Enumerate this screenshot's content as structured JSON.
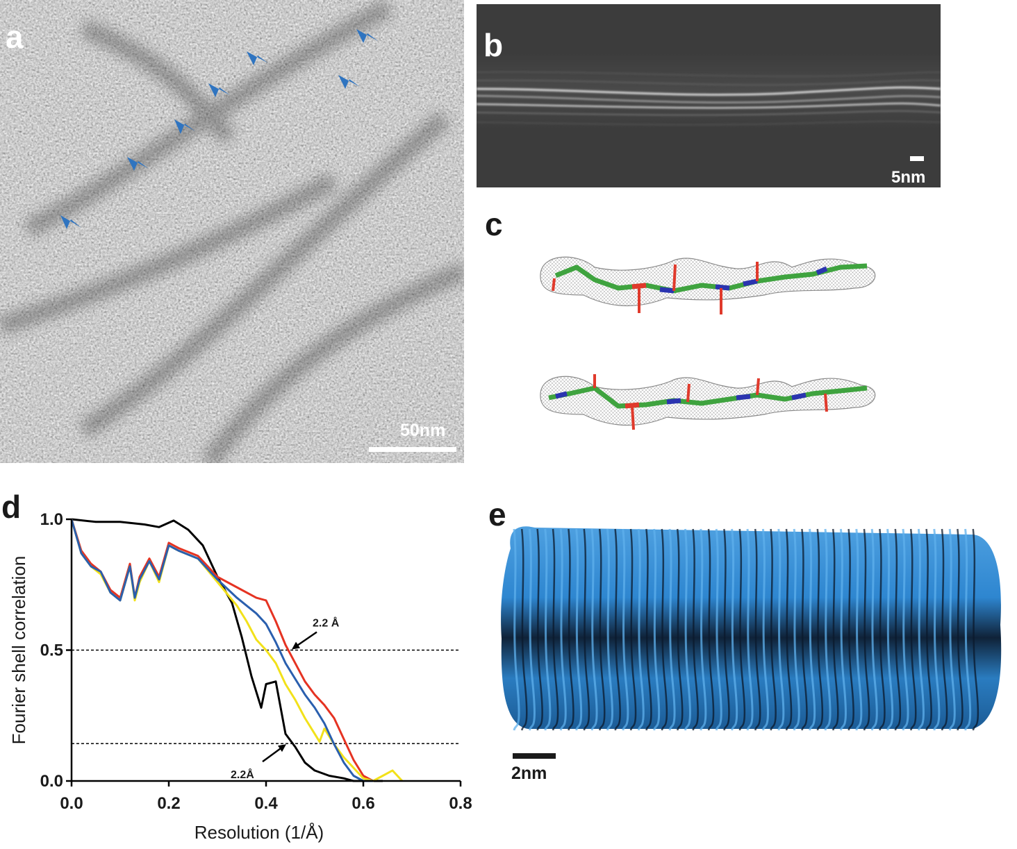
{
  "panels": {
    "a": {
      "letter": "a",
      "scale_label": "50nm"
    },
    "b": {
      "letter": "b",
      "scale_label": "5nm"
    },
    "c": {
      "letter": "c"
    },
    "d": {
      "letter": "d"
    },
    "e": {
      "letter": "e",
      "scale_label": "2nm"
    }
  },
  "colors": {
    "arrowhead": "#2f74c0",
    "micrograph": "#a9a9a9",
    "projection_bg": "#3c3c3c",
    "density_blue": "#2e86d0",
    "carbon": "#3fa33f",
    "nitrogen": "#2b34b0",
    "oxygen": "#e03a2c"
  },
  "chart_data": {
    "type": "line",
    "xlabel": "Resolution (1/Å)",
    "ylabel": "Fourier shell correlation",
    "xlim": [
      0,
      0.8
    ],
    "ylim": [
      0,
      1.0
    ],
    "xticks": [
      "0.0",
      "0.2",
      "0.4",
      "0.6",
      "0.8"
    ],
    "yticks": [
      "0.0",
      "0.5",
      "1.0"
    ],
    "thresholds": [
      0.5,
      0.143
    ],
    "annotations": [
      {
        "text": "2.2 Å",
        "x": 0.45,
        "y": 0.5
      },
      {
        "text": "2.2Å",
        "x": 0.45,
        "y": 0.143
      }
    ],
    "series": [
      {
        "color": "#000000",
        "x": [
          0.0,
          0.05,
          0.1,
          0.15,
          0.18,
          0.21,
          0.24,
          0.27,
          0.3,
          0.33,
          0.35,
          0.37,
          0.39,
          0.4,
          0.42,
          0.44,
          0.46,
          0.48,
          0.5,
          0.53,
          0.56,
          0.58,
          0.6,
          0.62,
          0.64
        ],
        "y": [
          1.0,
          0.99,
          0.99,
          0.98,
          0.97,
          0.995,
          0.96,
          0.9,
          0.78,
          0.68,
          0.55,
          0.4,
          0.28,
          0.37,
          0.38,
          0.18,
          0.13,
          0.07,
          0.04,
          0.02,
          0.01,
          0.0,
          0.0,
          0.0,
          0.0
        ]
      },
      {
        "color": "#e53322",
        "x": [
          0.0,
          0.02,
          0.04,
          0.06,
          0.08,
          0.1,
          0.12,
          0.13,
          0.14,
          0.16,
          0.18,
          0.2,
          0.22,
          0.26,
          0.3,
          0.34,
          0.38,
          0.4,
          0.42,
          0.44,
          0.46,
          0.48,
          0.5,
          0.52,
          0.54,
          0.56,
          0.58,
          0.6,
          0.62
        ],
        "y": [
          1.0,
          0.88,
          0.83,
          0.8,
          0.73,
          0.7,
          0.83,
          0.7,
          0.78,
          0.85,
          0.78,
          0.91,
          0.89,
          0.86,
          0.78,
          0.74,
          0.7,
          0.69,
          0.61,
          0.52,
          0.45,
          0.38,
          0.33,
          0.29,
          0.24,
          0.16,
          0.08,
          0.02,
          0.0
        ]
      },
      {
        "color": "#f2e11a",
        "x": [
          0.0,
          0.02,
          0.04,
          0.06,
          0.08,
          0.1,
          0.12,
          0.13,
          0.14,
          0.16,
          0.18,
          0.2,
          0.22,
          0.26,
          0.3,
          0.34,
          0.36,
          0.38,
          0.4,
          0.42,
          0.44,
          0.46,
          0.48,
          0.5,
          0.51,
          0.52,
          0.54,
          0.56,
          0.58,
          0.6,
          0.62,
          0.64,
          0.66,
          0.68
        ],
        "y": [
          1.0,
          0.87,
          0.82,
          0.79,
          0.72,
          0.69,
          0.82,
          0.69,
          0.76,
          0.84,
          0.76,
          0.9,
          0.88,
          0.85,
          0.76,
          0.67,
          0.61,
          0.54,
          0.5,
          0.45,
          0.37,
          0.31,
          0.24,
          0.18,
          0.15,
          0.2,
          0.14,
          0.09,
          0.05,
          0.01,
          0.0,
          0.02,
          0.04,
          0.0
        ]
      },
      {
        "color": "#2a5fae",
        "x": [
          0.0,
          0.02,
          0.04,
          0.06,
          0.08,
          0.1,
          0.12,
          0.13,
          0.14,
          0.16,
          0.18,
          0.2,
          0.22,
          0.26,
          0.3,
          0.34,
          0.36,
          0.38,
          0.4,
          0.42,
          0.44,
          0.46,
          0.48,
          0.5,
          0.52,
          0.54,
          0.56,
          0.58,
          0.6,
          0.62
        ],
        "y": [
          1.0,
          0.87,
          0.82,
          0.8,
          0.72,
          0.69,
          0.82,
          0.7,
          0.77,
          0.84,
          0.77,
          0.9,
          0.88,
          0.85,
          0.77,
          0.7,
          0.67,
          0.64,
          0.6,
          0.53,
          0.45,
          0.39,
          0.33,
          0.28,
          0.22,
          0.14,
          0.07,
          0.02,
          0.0,
          0.0
        ]
      }
    ]
  }
}
